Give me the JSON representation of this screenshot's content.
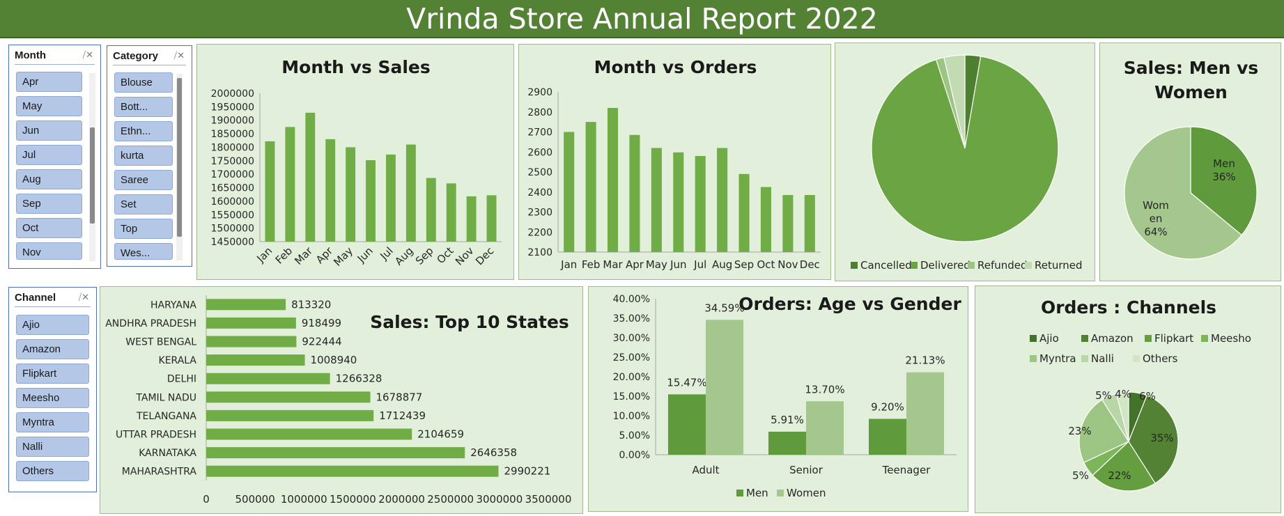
{
  "report_title": "Vrinda Store Annual Report 2022",
  "colors": {
    "title_bar": "#548235",
    "panel_bg": "#e2efda",
    "bar": "#70ad47",
    "men": "#5f9b3d",
    "women": "#a3c78c",
    "slicer_button": "#b4c7e7"
  },
  "slicers": {
    "month": {
      "title": "Month",
      "clear_icon": "clear-filter-icon",
      "items": [
        "Apr",
        "May",
        "Jun",
        "Jul",
        "Aug",
        "Sep",
        "Oct",
        "Nov"
      ]
    },
    "category": {
      "title": "Category",
      "clear_icon": "clear-filter-icon",
      "items": [
        "Blouse",
        "Bott...",
        "Ethn...",
        "kurta",
        "Saree",
        "Set",
        "Top",
        "Wes..."
      ]
    },
    "channel": {
      "title": "Channel",
      "clear_icon": "clear-filter-icon",
      "items": [
        "Ajio",
        "Amazon",
        "Flipkart",
        "Meesho",
        "Myntra",
        "Nalli",
        "Others"
      ]
    }
  },
  "chart_data": [
    {
      "id": "month_sales",
      "type": "bar",
      "title": "Month vs Sales",
      "categories": [
        "Jan",
        "Feb",
        "Mar",
        "Apr",
        "May",
        "Jun",
        "Jul",
        "Aug",
        "Sep",
        "Oct",
        "Nov",
        "Dec"
      ],
      "values": [
        1822000,
        1875000,
        1928000,
        1830000,
        1800000,
        1752000,
        1773000,
        1810000,
        1686000,
        1666000,
        1618000,
        1622000
      ],
      "ylim": [
        1450000,
        2000000
      ],
      "yticks": [
        "2000000",
        "1950000",
        "1900000",
        "1850000",
        "1800000",
        "1750000",
        "1700000",
        "1650000",
        "1600000",
        "1550000",
        "1500000",
        "1450000"
      ]
    },
    {
      "id": "month_orders",
      "type": "bar",
      "title": "Month vs Orders",
      "categories": [
        "Jan",
        "Feb",
        "Mar",
        "Apr",
        "May",
        "Jun",
        "Jul",
        "Aug",
        "Sep",
        "Oct",
        "Nov",
        "Dec"
      ],
      "values": [
        2700,
        2750,
        2820,
        2685,
        2620,
        2598,
        2580,
        2620,
        2490,
        2425,
        2385,
        2385
      ],
      "ylim": [
        2100,
        2900
      ],
      "yticks": [
        "2900",
        "2800",
        "2700",
        "2600",
        "2500",
        "2400",
        "2300",
        "2200",
        "2100"
      ]
    },
    {
      "id": "order_status",
      "type": "pie",
      "title": "",
      "labels": [
        "Cancelled",
        "Delivered",
        "Refunded",
        "Returned"
      ],
      "values": [
        2.7,
        92.3,
        1.4,
        3.6
      ],
      "colors": [
        "#4e7f30",
        "#6aa443",
        "#9cc482",
        "#c3dbb2"
      ],
      "legend": "bottom"
    },
    {
      "id": "sales_gender",
      "type": "pie",
      "title": "Sales: Men vs Women",
      "labels": [
        "Men",
        "Women"
      ],
      "values": [
        36,
        64
      ],
      "data_labels": [
        [
          "Men",
          "36%"
        ],
        [
          "Wom",
          "en",
          "64%"
        ]
      ],
      "colors": [
        "#5f9b3d",
        "#a3c78c"
      ]
    },
    {
      "id": "top_states",
      "type": "bar",
      "orientation": "horizontal",
      "title": "Sales: Top 10 States",
      "categories": [
        "HARYANA",
        "ANDHRA PRADESH",
        "WEST BENGAL",
        "KERALA",
        "DELHI",
        "TAMIL NADU",
        "TELANGANA",
        "UTTAR PRADESH",
        "KARNATAKA",
        "MAHARASHTRA"
      ],
      "values": [
        813320,
        918499,
        922444,
        1008940,
        1266328,
        1678877,
        1712439,
        2104659,
        2646358,
        2990221
      ],
      "data_labels": [
        "813320",
        "918499",
        "922444",
        "1008940",
        "1266328",
        "1678877",
        "1712439",
        "2104659",
        "2646358",
        "2990221"
      ],
      "xlim": [
        0,
        3500000
      ],
      "xticks": [
        "0",
        "500000",
        "1000000",
        "1500000",
        "2000000",
        "2500000",
        "3000000",
        "3500000"
      ]
    },
    {
      "id": "age_gender",
      "type": "bar",
      "title": "Orders: Age vs Gender",
      "categories": [
        "Adult",
        "Senior",
        "Teenager"
      ],
      "series": [
        {
          "name": "Men",
          "values": [
            15.47,
            5.91,
            9.2
          ],
          "labels": [
            "15.47%",
            "5.91%",
            "9.20%"
          ]
        },
        {
          "name": "Women",
          "values": [
            34.59,
            13.7,
            21.13
          ],
          "labels": [
            "34.59%",
            "13.70%",
            "21.13%"
          ]
        }
      ],
      "ylim": [
        0,
        40
      ],
      "yticks": [
        "40.00%",
        "35.00%",
        "30.00%",
        "25.00%",
        "20.00%",
        "15.00%",
        "10.00%",
        "5.00%",
        "0.00%"
      ],
      "legend": "bottom"
    },
    {
      "id": "channels",
      "type": "pie",
      "title": "Orders : Channels",
      "labels": [
        "Ajio",
        "Amazon",
        "Flipkart",
        "Meesho",
        "Myntra",
        "Nalli",
        "Others"
      ],
      "values": [
        6,
        35,
        22,
        5,
        23,
        5,
        4
      ],
      "data_labels": [
        "6%",
        "35%",
        "22%",
        "5%",
        "23%",
        "5%",
        "4%"
      ],
      "colors": [
        "#43732a",
        "#548235",
        "#649e3e",
        "#7cb55a",
        "#9cc482",
        "#b9d6a6",
        "#d2e6c5"
      ],
      "legend": "top"
    }
  ]
}
